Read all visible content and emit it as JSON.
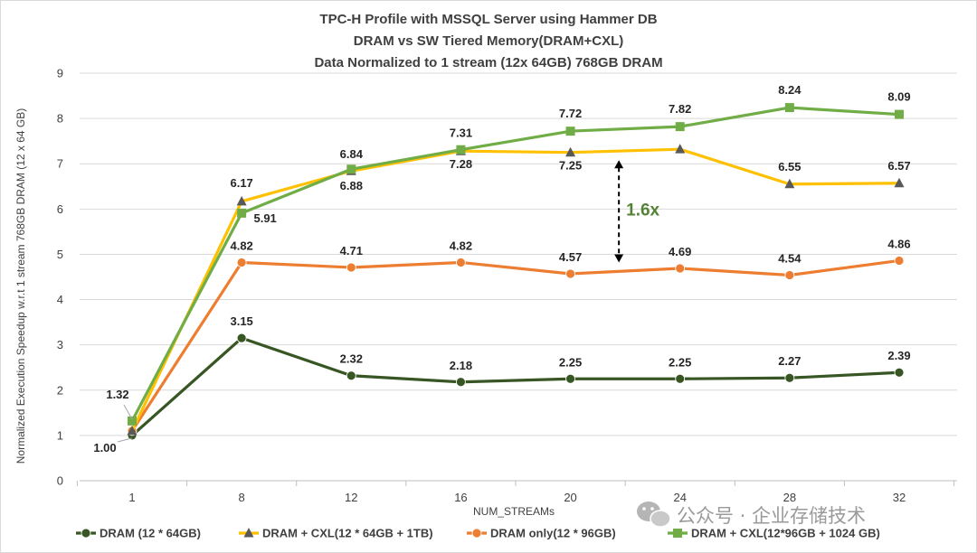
{
  "chart_data": {
    "type": "line",
    "title_lines": [
      "TPC-H Profile with MSSQL Server using Hammer DB",
      "DRAM vs SW Tiered Memory(DRAM+CXL)",
      "Data Normalized to 1 stream (12x 64GB) 768GB DRAM"
    ],
    "xlabel": "NUM_STREAMs",
    "ylabel": "Normalized Execution Speedup w.r.t 1 stream 768GB DRAM (12 x 64 GB)",
    "categories": [
      "1",
      "8",
      "12",
      "16",
      "20",
      "24",
      "28",
      "32"
    ],
    "ylim": [
      0,
      9
    ],
    "yticks": [
      "0",
      "1",
      "2",
      "3",
      "4",
      "5",
      "6",
      "7",
      "8",
      "9"
    ],
    "grid": true,
    "legend_position": "bottom",
    "series": [
      {
        "name": "DRAM (12 * 64GB)",
        "color": "#375623",
        "marker": "circle",
        "values": [
          1.0,
          3.15,
          2.32,
          2.18,
          2.25,
          2.25,
          2.27,
          2.39
        ],
        "labels": [
          "1.00",
          "3.15",
          "2.32",
          "2.18",
          "2.25",
          "2.25",
          "2.27",
          "2.39"
        ]
      },
      {
        "name": "DRAM + CXL(12 * 64GB + 1TB)",
        "color": "#FFC000",
        "marker": "triangle",
        "values": [
          1.1,
          6.17,
          6.84,
          7.28,
          7.25,
          7.32,
          6.55,
          6.57
        ],
        "labels": [
          "",
          "6.17",
          "6.84",
          "7.28",
          "7.25",
          "",
          "6.55",
          "6.57"
        ]
      },
      {
        "name": "DRAM only(12 * 96GB)",
        "color": "#ED7D31",
        "marker": "circle",
        "values": [
          1.1,
          4.82,
          4.71,
          4.82,
          4.57,
          4.69,
          4.54,
          4.86
        ],
        "labels": [
          "",
          "4.82",
          "4.71",
          "4.82",
          "4.57",
          "4.69",
          "4.54",
          "4.86"
        ]
      },
      {
        "name": "DRAM + CXL(12*96GB + 1024 GB)",
        "color": "#70AD47",
        "marker": "square",
        "values": [
          1.32,
          5.91,
          6.88,
          7.31,
          7.72,
          7.82,
          8.24,
          8.09
        ],
        "labels": [
          "1.32",
          "5.91",
          "6.88",
          "7.31",
          "7.72",
          "7.82",
          "8.24",
          "8.09"
        ]
      }
    ],
    "annotation": {
      "text": "1.6x",
      "category": "22",
      "y_from": 4.66,
      "y_to": 7.28,
      "color": "#548235"
    }
  },
  "watermark": {
    "text": "公众号 · 企业存储技术",
    "icon": "wechat-icon"
  }
}
